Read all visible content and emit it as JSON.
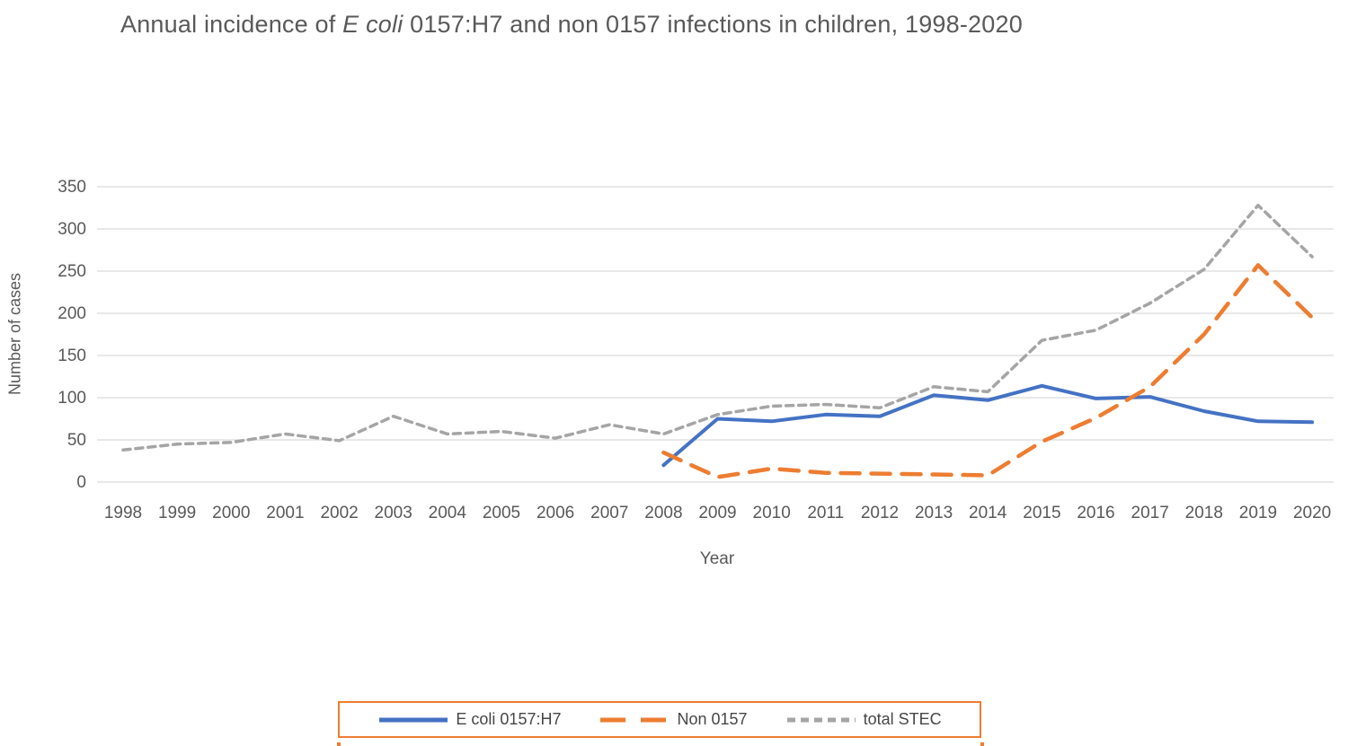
{
  "title": {
    "part1": "Annual incidence of ",
    "italic": "E coli",
    "part2": " 0157:H7 and non 0157 infections in children, 1998-2020"
  },
  "chart_data": {
    "type": "line",
    "x": [
      1998,
      1999,
      2000,
      2001,
      2002,
      2003,
      2004,
      2005,
      2006,
      2007,
      2008,
      2009,
      2010,
      2011,
      2012,
      2013,
      2014,
      2015,
      2016,
      2017,
      2018,
      2019,
      2020
    ],
    "series": [
      {
        "name": "E coli 0157:H7",
        "color": "#4472C4",
        "dash": "solid",
        "values": [
          null,
          null,
          null,
          null,
          null,
          null,
          null,
          null,
          null,
          null,
          20,
          75,
          72,
          80,
          78,
          103,
          97,
          114,
          99,
          101,
          84,
          72,
          71
        ]
      },
      {
        "name": "Non 0157",
        "color": "#ED7D31",
        "dash": "long-dash",
        "values": [
          null,
          null,
          null,
          null,
          null,
          null,
          null,
          null,
          null,
          null,
          35,
          6,
          16,
          11,
          10,
          9,
          8,
          48,
          76,
          113,
          175,
          257,
          195
        ]
      },
      {
        "name": "total STEC",
        "color": "#A5A5A5",
        "dash": "short-dash",
        "values": [
          38,
          45,
          47,
          57,
          49,
          78,
          57,
          60,
          52,
          68,
          57,
          80,
          90,
          92,
          88,
          113,
          107,
          168,
          180,
          212,
          252,
          328,
          267
        ]
      }
    ],
    "xlabel": "Year",
    "ylabel": "Number of cases",
    "ylim": [
      0,
      350
    ],
    "ytick_step": 50,
    "yticks": [
      0,
      50,
      100,
      150,
      200,
      250,
      300,
      350
    ],
    "grid": "horizontal",
    "legend_position": "bottom"
  },
  "colors": {
    "grid": "#D9D9D9",
    "axis_text": "#595959",
    "legend_border": "#ED7D31",
    "background": "#FFFFFF"
  }
}
